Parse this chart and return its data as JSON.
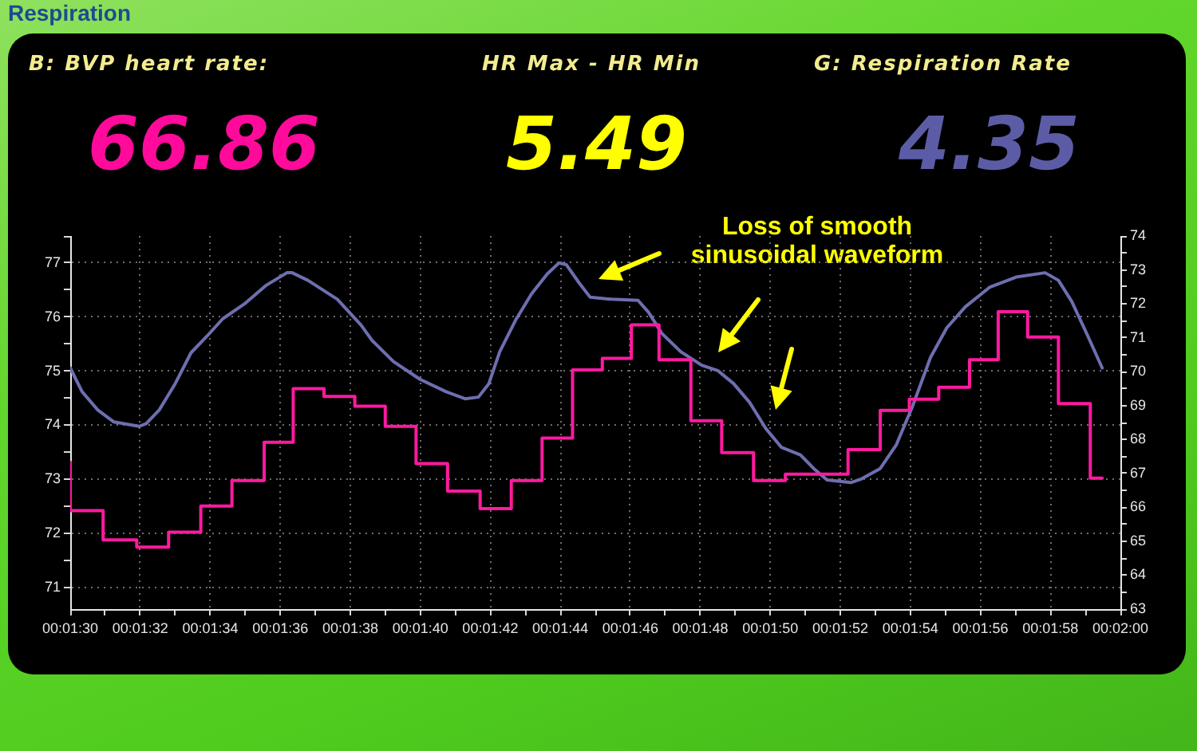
{
  "chart_data": {
    "type": "line",
    "title": "Respiration",
    "annotations": [
      "B: BVP heart rate:",
      "66.86",
      "HR Max - HR Min",
      "5.49",
      "G: Respiration Rate",
      "4.35",
      "Loss of smooth sinusoidal waveform"
    ],
    "xlim": [
      90,
      120
    ],
    "xticks": [
      {
        "value": 90,
        "label": "00:01:30"
      },
      {
        "value": 91,
        "label": null
      },
      {
        "value": 92,
        "label": "00:01:32"
      },
      {
        "value": 93,
        "label": null
      },
      {
        "value": 94,
        "label": "00:01:34"
      },
      {
        "value": 95,
        "label": null
      },
      {
        "value": 96,
        "label": "00:01:36"
      },
      {
        "value": 97,
        "label": null
      },
      {
        "value": 98,
        "label": "00:01:38"
      },
      {
        "value": 99,
        "label": null
      },
      {
        "value": 100,
        "label": "00:01:40"
      },
      {
        "value": 101,
        "label": null
      },
      {
        "value": 102,
        "label": "00:01:42"
      },
      {
        "value": 103,
        "label": null
      },
      {
        "value": 104,
        "label": "00:01:44"
      },
      {
        "value": 105,
        "label": null
      },
      {
        "value": 106,
        "label": "00:01:46"
      },
      {
        "value": 107,
        "label": null
      },
      {
        "value": 108,
        "label": "00:01:48"
      },
      {
        "value": 109,
        "label": null
      },
      {
        "value": 110,
        "label": "00:01:50"
      },
      {
        "value": 111,
        "label": null
      },
      {
        "value": 112,
        "label": "00:01:52"
      },
      {
        "value": 113,
        "label": null
      },
      {
        "value": 114,
        "label": "00:01:54"
      },
      {
        "value": 115,
        "label": null
      },
      {
        "value": 116,
        "label": "00:01:56"
      },
      {
        "value": 117,
        "label": null
      },
      {
        "value": 118,
        "label": "00:01:58"
      },
      {
        "value": 119,
        "label": null
      },
      {
        "value": 120,
        "label": "00:02:00"
      }
    ],
    "ylim": [
      70.6,
      77.5
    ],
    "yticks": [
      71,
      {
        "value": 71.5,
        "label": null
      },
      72,
      {
        "value": 72.5,
        "label": null
      },
      73,
      {
        "value": 73.5,
        "label": null
      },
      74,
      {
        "value": 74.5,
        "label": null
      },
      75,
      {
        "value": 75.5,
        "label": null
      },
      76,
      {
        "value": 76.5,
        "label": null
      },
      77,
      {
        "value": 77.5,
        "label": null
      }
    ],
    "y2lim": [
      63,
      74
    ],
    "y2ticks": [
      63,
      {
        "value": 63.5,
        "label": null
      },
      64,
      {
        "value": 64.5,
        "label": null
      },
      65,
      {
        "value": 65.5,
        "label": null
      },
      66,
      {
        "value": 66.5,
        "label": null
      },
      67,
      {
        "value": 67.5,
        "label": null
      },
      68,
      {
        "value": 68.5,
        "label": null
      },
      69,
      {
        "value": 69.5,
        "label": null
      },
      70,
      {
        "value": 70.5,
        "label": null
      },
      71,
      {
        "value": 71.5,
        "label": null
      },
      72,
      {
        "value": 72.5,
        "label": null
      },
      73,
      {
        "value": 73.5,
        "label": null
      },
      74
    ],
    "grid": true,
    "series": [
      {
        "type": "step",
        "axis": "y2",
        "color": "#ff1aa0",
        "x": [
          90,
          90,
          90.94,
          91.9,
          92.81,
          93.73,
          94.62,
          95.54,
          96.37,
          97.25,
          98.13,
          99.0,
          99.88,
          100.78,
          101.71,
          102.6,
          103.48,
          104.35,
          105.2,
          106.03,
          106.82,
          107.73,
          108.61,
          109.52,
          110.43,
          112.22,
          113.14,
          113.97,
          114.81,
          115.69,
          116.51,
          117.35,
          118.23,
          119.14,
          119.48
        ],
        "values": [
          67.33,
          65.9,
          65.04,
          64.83,
          65.27,
          66.04,
          66.79,
          67.92,
          69.5,
          69.27,
          68.98,
          68.39,
          67.29,
          66.48,
          65.96,
          66.79,
          68.04,
          70.05,
          70.39,
          71.38,
          70.35,
          68.55,
          67.61,
          66.79,
          66.98,
          67.7,
          68.86,
          69.19,
          69.54,
          70.35,
          71.77,
          71.02,
          69.06,
          66.86,
          66.86
        ]
      },
      {
        "color": "#6e6eb0",
        "x": [
          90,
          90.34,
          90.79,
          91.25,
          91.97,
          92.17,
          92.54,
          93.0,
          93.45,
          93.91,
          94.36,
          94.97,
          95.58,
          96.19,
          96.34,
          96.79,
          97.63,
          98.31,
          98.62,
          99.23,
          99.99,
          100.74,
          101.28,
          101.66,
          101.96,
          102.27,
          102.72,
          103.18,
          103.63,
          103.96,
          104.17,
          104.54,
          104.85,
          105.46,
          106.22,
          106.52,
          106.9,
          107.44,
          108.04,
          108.5,
          108.95,
          109.41,
          109.87,
          110.32,
          110.86,
          111.24,
          111.62,
          112.3,
          112.61,
          113.14,
          113.6,
          114.05,
          114.58,
          115.04,
          115.57,
          116.26,
          117.02,
          117.85,
          118.23,
          118.61,
          119.07,
          119.48
        ],
        "values": [
          75.06,
          74.62,
          74.28,
          74.06,
          73.98,
          74.03,
          74.28,
          74.77,
          75.34,
          75.65,
          75.97,
          76.24,
          76.58,
          76.82,
          76.82,
          76.68,
          76.33,
          75.85,
          75.57,
          75.18,
          74.85,
          74.62,
          74.49,
          74.52,
          74.77,
          75.36,
          75.94,
          76.43,
          76.8,
          77.0,
          76.97,
          76.63,
          76.37,
          76.33,
          76.31,
          76.09,
          75.7,
          75.36,
          75.11,
          75.01,
          74.77,
          74.42,
          73.94,
          73.59,
          73.45,
          73.2,
          72.99,
          72.94,
          73.01,
          73.2,
          73.64,
          74.33,
          75.26,
          75.8,
          76.19,
          76.55,
          76.74,
          76.82,
          76.68,
          76.29,
          75.65,
          75.06
        ]
      }
    ]
  }
}
